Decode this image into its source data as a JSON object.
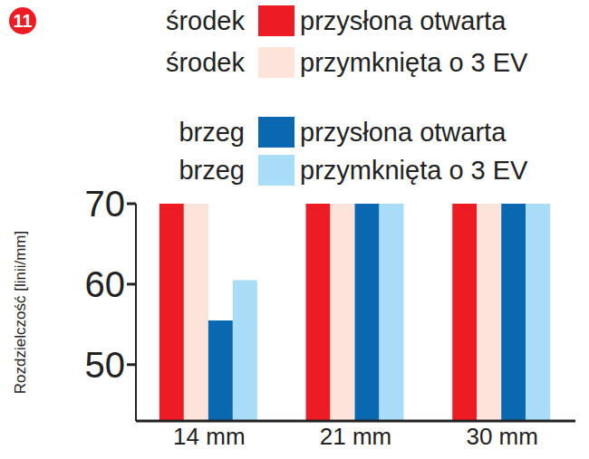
{
  "chart_data": {
    "type": "bar",
    "badge": "11",
    "y_label": "Rozdzielczość  [linii/mm]",
    "categories": [
      "14 mm",
      "21 mm",
      "30 mm"
    ],
    "series": [
      {
        "group": "środek",
        "name": "przysłona otwarta",
        "color": "#ed1c24",
        "values": [
          70,
          70,
          70
        ]
      },
      {
        "group": "środek",
        "name": "przymknięta o 3 EV",
        "color": "#fde3d9",
        "values": [
          70,
          70,
          70
        ]
      },
      {
        "group": "brzeg",
        "name": "przysłona otwarta",
        "color": "#0a68b0",
        "values": [
          55.5,
          70,
          70
        ]
      },
      {
        "group": "brzeg",
        "name": "przymknięta o 3 EV",
        "color": "#a9dcf7",
        "values": [
          60.5,
          70,
          70
        ]
      }
    ],
    "ylim": [
      43,
      70
    ],
    "yticks": [
      50,
      60,
      70
    ],
    "grid": false
  }
}
